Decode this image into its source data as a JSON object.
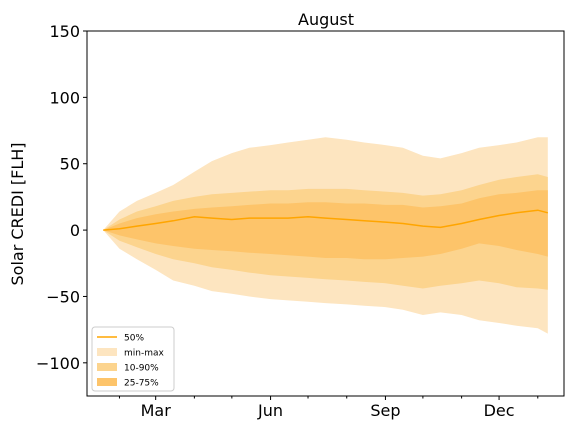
{
  "chart_data": {
    "type": "area",
    "title": "August",
    "xlabel": "",
    "ylabel": "Solar CREDI [FLH]",
    "ylim": [
      -125,
      150
    ],
    "yticks": [
      -100,
      -50,
      0,
      50,
      100,
      150
    ],
    "ytick_labels": [
      "−100",
      "−50",
      "0",
      "50",
      "100",
      "150"
    ],
    "xlim": [
      "2000-01-06",
      "2001-01-22"
    ],
    "xticks_major": [
      {
        "date": "2000-03-01",
        "label": "Mar"
      },
      {
        "date": "2000-06-01",
        "label": "Jun"
      },
      {
        "date": "2000-09-01",
        "label": "Sep"
      },
      {
        "date": "2000-12-01",
        "label": "Dec"
      }
    ],
    "xticks_minor": [
      "2000-02-01",
      "2000-04-01",
      "2000-05-01",
      "2000-07-01",
      "2000-08-01",
      "2000-10-01",
      "2000-11-01",
      "2001-01-01"
    ],
    "x": [
      "2000-01-19",
      "2000-02-01",
      "2000-02-15",
      "2000-03-01",
      "2000-03-15",
      "2000-04-01",
      "2000-04-15",
      "2000-05-01",
      "2000-05-15",
      "2000-06-01",
      "2000-06-15",
      "2000-07-01",
      "2000-07-15",
      "2000-08-01",
      "2000-08-15",
      "2000-09-01",
      "2000-09-15",
      "2000-10-01",
      "2000-10-15",
      "2000-11-01",
      "2000-11-15",
      "2000-12-01",
      "2000-12-15",
      "2001-01-01",
      "2001-01-09"
    ],
    "series": [
      {
        "name": "min-max",
        "band": true,
        "color": "#fde5c0",
        "upper": [
          0,
          14,
          22,
          28,
          34,
          44,
          52,
          58,
          62,
          64,
          66,
          68,
          70,
          68,
          66,
          64,
          62,
          56,
          54,
          58,
          62,
          64,
          66,
          70,
          70
        ],
        "lower": [
          0,
          -14,
          -22,
          -30,
          -38,
          -42,
          -46,
          -48,
          -50,
          -52,
          -53,
          -54,
          -55,
          -56,
          -57,
          -58,
          -60,
          -64,
          -62,
          -64,
          -68,
          -70,
          -72,
          -74,
          -78
        ]
      },
      {
        "name": "10-90%",
        "band": true,
        "color": "#fcd48e",
        "upper": [
          0,
          8,
          14,
          18,
          22,
          25,
          27,
          28,
          29,
          30,
          30,
          31,
          31,
          31,
          30,
          29,
          28,
          26,
          27,
          30,
          34,
          38,
          40,
          42,
          40
        ],
        "lower": [
          0,
          -8,
          -13,
          -18,
          -22,
          -25,
          -28,
          -30,
          -32,
          -34,
          -35,
          -36,
          -37,
          -38,
          -39,
          -40,
          -42,
          -44,
          -42,
          -40,
          -38,
          -40,
          -43,
          -44,
          -45
        ]
      },
      {
        "name": "25-75%",
        "band": true,
        "color": "#fdc46a",
        "upper": [
          0,
          5,
          9,
          12,
          14,
          16,
          17,
          18,
          19,
          20,
          20,
          21,
          21,
          20,
          20,
          19,
          19,
          17,
          18,
          20,
          24,
          27,
          28,
          30,
          30
        ],
        "lower": [
          0,
          -4,
          -7,
          -10,
          -12,
          -14,
          -15,
          -16,
          -17,
          -18,
          -19,
          -20,
          -21,
          -21,
          -22,
          -22,
          -21,
          -20,
          -18,
          -14,
          -10,
          -12,
          -15,
          -18,
          -20
        ]
      },
      {
        "name": "50%",
        "band": false,
        "color": "#ffa500",
        "values": [
          0,
          1,
          3,
          5,
          7,
          10,
          9,
          8,
          9,
          9,
          9,
          10,
          9,
          8,
          7,
          6,
          5,
          3,
          2,
          5,
          8,
          11,
          13,
          15,
          13
        ]
      }
    ],
    "legend_position": "lower-left",
    "legend_order": [
      "50%",
      "min-max",
      "10-90%",
      "25-75%"
    ],
    "grid": false
  }
}
